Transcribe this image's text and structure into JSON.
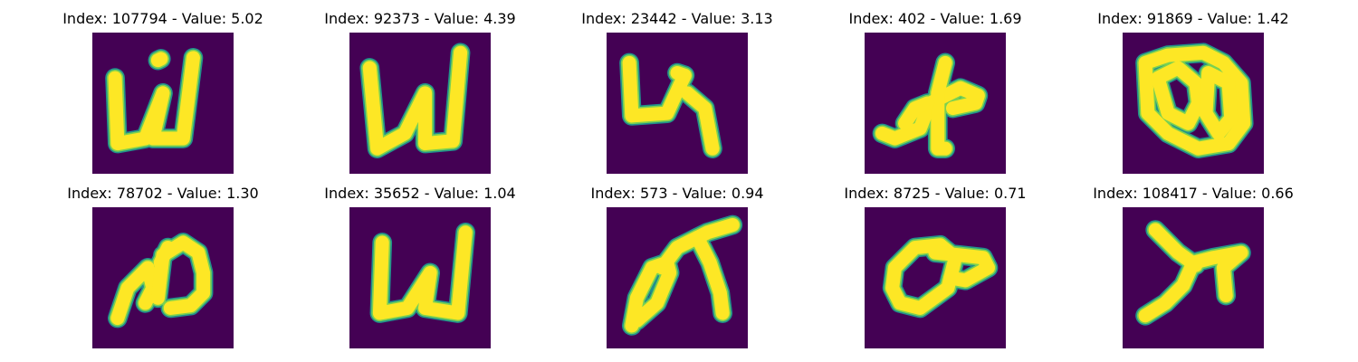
{
  "colors": {
    "background": "#440154",
    "stroke_edge": "#21918c",
    "stroke_mid": "#7ad151",
    "stroke_core": "#fde725"
  },
  "panels": [
    {
      "title": "Index: 107794 - Value: 5.02",
      "glyph": "glyph-1"
    },
    {
      "title": "Index: 92373 - Value: 4.39",
      "glyph": "glyph-2"
    },
    {
      "title": "Index: 23442 - Value: 3.13",
      "glyph": "glyph-3"
    },
    {
      "title": "Index: 402 - Value: 1.69",
      "glyph": "glyph-4"
    },
    {
      "title": "Index: 91869 - Value: 1.42",
      "glyph": "glyph-5"
    },
    {
      "title": "Index: 78702 - Value: 1.30",
      "glyph": "glyph-6"
    },
    {
      "title": "Index: 35652 - Value: 1.04",
      "glyph": "glyph-7"
    },
    {
      "title": "Index: 573 - Value: 0.94",
      "glyph": "glyph-8"
    },
    {
      "title": "Index: 8725 - Value: 0.71",
      "glyph": "glyph-9"
    },
    {
      "title": "Index: 108417 - Value: 0.66",
      "glyph": "glyph-10"
    }
  ]
}
